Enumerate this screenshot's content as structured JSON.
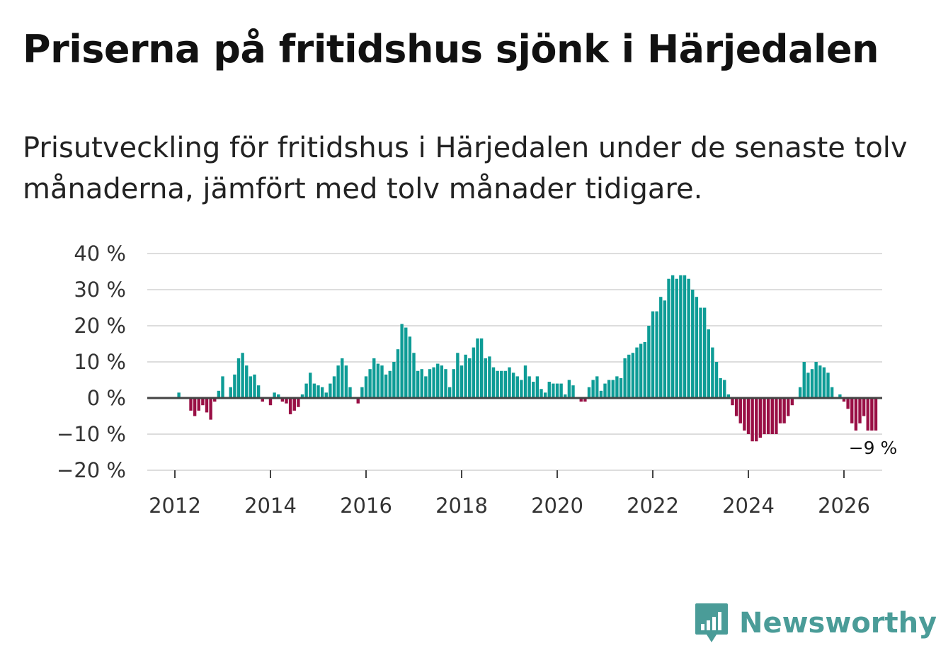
{
  "title": "Priserna på fritidshus sjönk i Härjedalen",
  "subtitle": "Prisutveckling för fritidshus i Härjedalen under de senaste tolv månaderna, jämfört med tolv månader tidigare.",
  "brand": {
    "name": "Newsworthy",
    "icon": "newsworthy-logo-icon"
  },
  "colors": {
    "positive": "#0e9c96",
    "negative": "#990f45",
    "grid": "#dddddd",
    "zero_line": "#444444"
  },
  "chart_data": {
    "type": "bar",
    "title": "Priserna på fritidshus sjönk i Härjedalen",
    "xlabel": "",
    "ylabel": "",
    "ylim": [
      -20,
      40
    ],
    "yticks": [
      40,
      30,
      20,
      10,
      0,
      -10,
      -20
    ],
    "ytick_labels": [
      "40 %",
      "30 %",
      "20 %",
      "10 %",
      "0 %",
      "−10 %",
      "−20 %"
    ],
    "xticks": [
      2012,
      2014,
      2016,
      2018,
      2020,
      2022,
      2024,
      2026
    ],
    "xtick_labels": [
      "2012",
      "2014",
      "2016",
      "2018",
      "2020",
      "2022",
      "2024",
      "2026"
    ],
    "start": "2012-02",
    "frequency": "monthly",
    "annotation": {
      "text": "−9 %",
      "at": "last"
    },
    "values": [
      1.5,
      0,
      0,
      -3.5,
      -5,
      -3.5,
      -2,
      -4,
      -6,
      -1,
      2,
      6,
      0,
      3,
      6.5,
      11,
      12.5,
      9,
      6,
      6.5,
      3.5,
      -1,
      0,
      -2,
      1.5,
      1,
      -1,
      -1.5,
      -4.5,
      -3.5,
      -2.5,
      1,
      4,
      7,
      4,
      3.5,
      3,
      1.5,
      4,
      6,
      9,
      11,
      9,
      3,
      0,
      -1.5,
      3,
      6,
      8,
      11,
      9.5,
      9,
      6.5,
      7.5,
      10,
      13.5,
      20.5,
      19.5,
      17,
      12.5,
      7.5,
      8,
      6,
      8,
      8.5,
      9.5,
      9,
      8,
      3,
      8,
      12.5,
      9,
      12,
      11,
      14,
      16.5,
      16.5,
      11,
      11.5,
      8.5,
      7.5,
      7.5,
      7.5,
      8.5,
      7,
      6,
      5,
      9,
      6,
      4.5,
      6,
      2.5,
      1.5,
      4.5,
      4,
      4,
      4,
      1,
      5,
      3.5,
      0,
      -1,
      -1,
      3,
      5,
      6,
      2,
      4,
      5,
      5,
      6,
      5.5,
      11,
      12,
      12.5,
      14,
      15,
      15.5,
      20,
      24,
      24,
      28,
      27,
      33,
      34,
      33,
      34,
      34,
      33,
      30,
      28,
      25,
      25,
      19,
      14,
      10,
      5.5,
      5,
      1,
      -2,
      -5,
      -7,
      -9,
      -10,
      -12,
      -12,
      -11,
      -10,
      -10,
      -10,
      -10,
      -7,
      -7,
      -5,
      -2,
      0,
      3,
      10,
      7,
      8,
      10,
      9,
      8.5,
      7,
      3,
      0,
      1,
      -1,
      -3,
      -7,
      -9,
      -7,
      -5,
      -9,
      -9,
      -9
    ]
  }
}
